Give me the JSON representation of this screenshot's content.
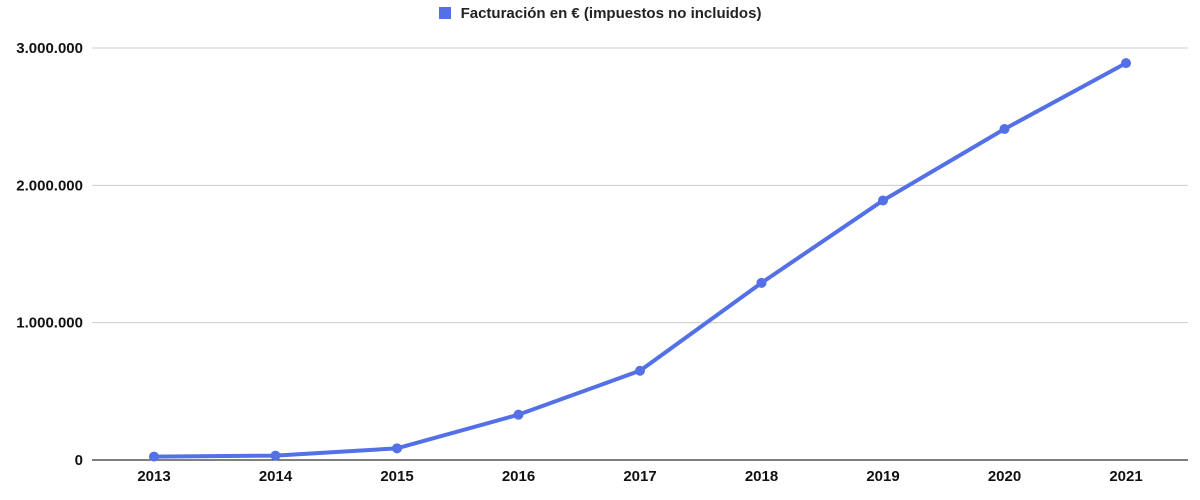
{
  "chart_data": {
    "type": "line",
    "x": [
      "2013",
      "2014",
      "2015",
      "2016",
      "2017",
      "2018",
      "2019",
      "2020",
      "2021"
    ],
    "series": [
      {
        "name": "Facturación en € (impuestos no incluidos)",
        "color": "#5470E6",
        "values": [
          25000,
          32000,
          85000,
          330000,
          650000,
          1290000,
          1890000,
          2410000,
          2890000
        ]
      }
    ],
    "ylim": [
      0,
      3000000
    ],
    "yticks": [
      0,
      1000000,
      2000000,
      3000000
    ],
    "ytick_labels": [
      "0",
      "1.000.000",
      "2.000.000",
      "3.000.000"
    ],
    "xlabel": "",
    "ylabel": "",
    "legend": "top-center",
    "grid": true,
    "markers": true
  }
}
